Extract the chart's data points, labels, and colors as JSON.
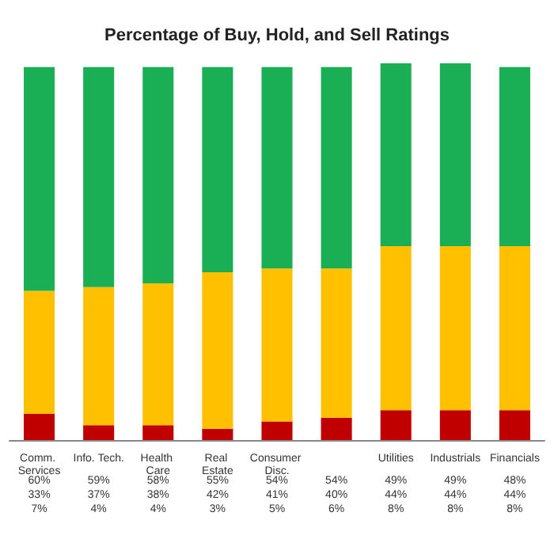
{
  "chart_data": {
    "type": "bar",
    "stacked": true,
    "title": "Percentage of Buy, Hold, and Sell Ratings",
    "categories": [
      "Comm. Services",
      "Info. Tech.",
      "Health Care",
      "Real Estate",
      "Consumer Disc.",
      null,
      "Utilities",
      "Industrials",
      "Financials"
    ],
    "ylim": [
      0,
      101
    ],
    "tick_labels": "x",
    "series": [
      {
        "color": "#c00000",
        "values": [
          7,
          4,
          4,
          3,
          5,
          6,
          8,
          8,
          8
        ],
        "value_labels": [
          "7%",
          "4%",
          "4%",
          "3%",
          "5%",
          "6%",
          "8%",
          "8%",
          "8%"
        ]
      },
      {
        "color": "#ffc000",
        "values": [
          33,
          37,
          38,
          42,
          41,
          40,
          44,
          44,
          44
        ],
        "value_labels": [
          "33%",
          "37%",
          "38%",
          "42%",
          "41%",
          "40%",
          "44%",
          "44%",
          "44%"
        ]
      },
      {
        "color": "#1aaf54",
        "values": [
          60,
          59,
          58,
          55,
          54,
          54,
          49,
          49,
          48
        ],
        "value_labels": [
          "60%",
          "59%",
          "58%",
          "55%",
          "54%",
          "54%",
          "49%",
          "49%",
          "48%"
        ]
      }
    ]
  }
}
